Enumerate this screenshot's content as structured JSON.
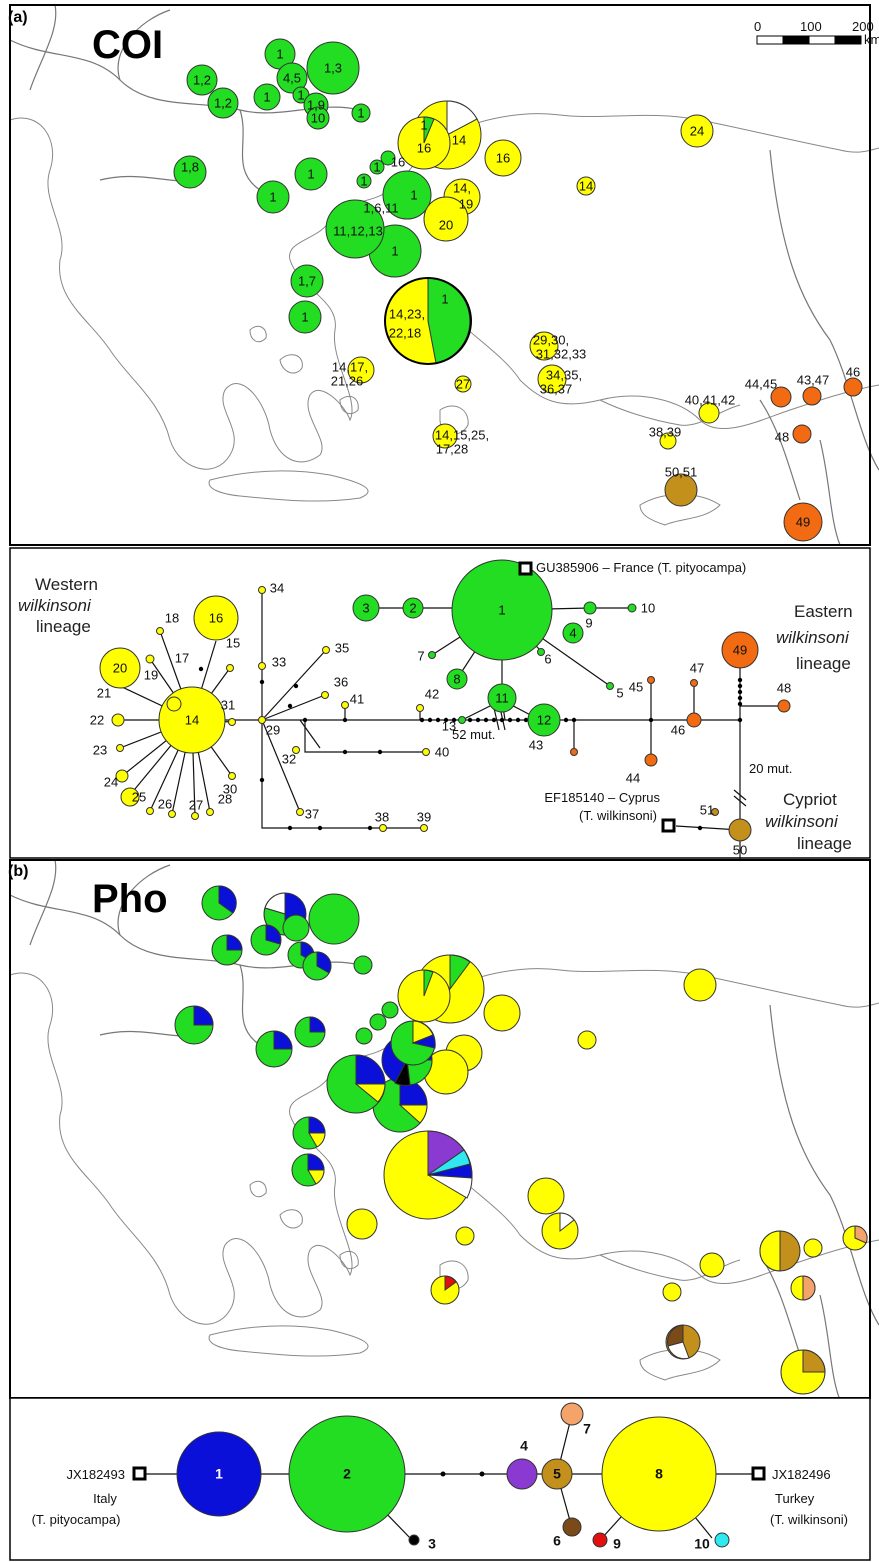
{
  "colors": {
    "green": "#22dd22",
    "yellow": "#ffff00",
    "orange": "#f26a12",
    "light_orange": "#f4a46a",
    "brown": "#c4901c",
    "dark_brown": "#7a4a18",
    "blue": "#0a10d8",
    "purple": "#8a3ad0",
    "cyan": "#30e8f0",
    "red": "#e01010",
    "black": "#000000",
    "white": "#ffffff"
  },
  "panel_a": {
    "letter": "(a)",
    "title": "COI",
    "scale_bar": {
      "ticks": [
        "0",
        "100",
        "200"
      ],
      "unit": "km"
    },
    "map_labels": [
      "1",
      "1,3",
      "1,2",
      "4,5",
      "1,2",
      "1",
      "1",
      "1,9",
      "10",
      "1",
      "1",
      "16",
      "14",
      "24",
      "16",
      "1,8",
      "1",
      "1",
      "1",
      "16",
      "1",
      "14,",
      "19",
      "14",
      "1,6,11",
      "1",
      "11,12,13",
      "20",
      "1",
      "1,7",
      "1",
      "14,23,",
      "22,18",
      "1",
      "29,30,",
      "31,32,33",
      "34,35,",
      "36,37",
      "14,17,",
      "21,26",
      "27",
      "44,45",
      "43,47",
      "46",
      "40,41,42",
      "38,39",
      "48",
      "14,15,25,",
      "17,28",
      "50,51",
      "49"
    ],
    "network": {
      "reference_1": "GU385906 – France (T. pityocampa)",
      "reference_2_line1": "EF185140 – Cyprus",
      "reference_2_line2": "(T. wilkinsoni)",
      "lineage_west": [
        "Western",
        "wilkinsoni",
        "lineage"
      ],
      "lineage_east": [
        "Eastern",
        "wilkinsoni",
        "lineage"
      ],
      "lineage_cyprus": [
        "Cypriot",
        "wilkinsoni",
        "lineage"
      ],
      "mut_52": "52 mut.",
      "mut_20": "20 mut.",
      "haplotypes": [
        "1",
        "2",
        "3",
        "4",
        "5",
        "6",
        "7",
        "8",
        "9",
        "10",
        "11",
        "12",
        "13",
        "14",
        "15",
        "16",
        "17",
        "18",
        "19",
        "20",
        "21",
        "22",
        "23",
        "24",
        "25",
        "26",
        "27",
        "28",
        "29",
        "30",
        "31",
        "32",
        "33",
        "34",
        "35",
        "36",
        "37",
        "38",
        "39",
        "40",
        "41",
        "42",
        "43",
        "44",
        "45",
        "46",
        "47",
        "48",
        "49",
        "50",
        "51"
      ]
    }
  },
  "panel_b": {
    "letter": "(b)",
    "title": "Pho",
    "network": {
      "ref_left_id": "JX182493",
      "ref_left_country": "Italy",
      "ref_left_species": "(T. pityocampa)",
      "ref_right_id": "JX182496",
      "ref_right_country": "Turkey",
      "ref_right_species": "(T. wilkinsoni)",
      "haplotypes": [
        "1",
        "2",
        "3",
        "4",
        "5",
        "6",
        "7",
        "8",
        "9",
        "10"
      ]
    }
  }
}
